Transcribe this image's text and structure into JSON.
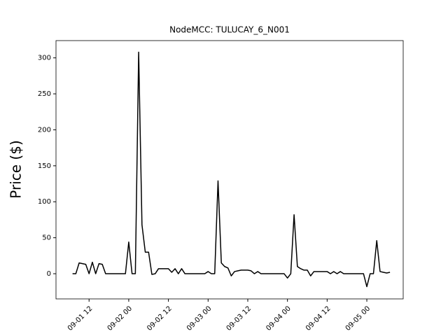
{
  "chart_data": {
    "type": "line",
    "title": "NodeMCC: TULUCAY_6_N001",
    "y_label": "Price ($)",
    "x": [
      "09-01 07",
      "09-01 08",
      "09-01 09",
      "09-01 10",
      "09-01 11",
      "09-01 12",
      "09-01 13",
      "09-01 14",
      "09-01 15",
      "09-01 16",
      "09-01 17",
      "09-01 18",
      "09-01 19",
      "09-01 20",
      "09-01 21",
      "09-01 22",
      "09-01 23",
      "09-02 00",
      "09-02 01",
      "09-02 02",
      "09-02 03",
      "09-02 04",
      "09-02 05",
      "09-02 06",
      "09-02 07",
      "09-02 08",
      "09-02 09",
      "09-02 10",
      "09-02 11",
      "09-02 12",
      "09-02 13",
      "09-02 14",
      "09-02 15",
      "09-02 16",
      "09-02 17",
      "09-02 18",
      "09-02 19",
      "09-02 20",
      "09-02 21",
      "09-02 22",
      "09-02 23",
      "09-03 00",
      "09-03 01",
      "09-03 02",
      "09-03 03",
      "09-03 04",
      "09-03 05",
      "09-03 06",
      "09-03 07",
      "09-03 08",
      "09-03 09",
      "09-03 10",
      "09-03 11",
      "09-03 12",
      "09-03 13",
      "09-03 14",
      "09-03 15",
      "09-03 16",
      "09-03 17",
      "09-03 18",
      "09-03 19",
      "09-03 20",
      "09-03 21",
      "09-03 22",
      "09-03 23",
      "09-04 00",
      "09-04 01",
      "09-04 02",
      "09-04 03",
      "09-04 04",
      "09-04 05",
      "09-04 06",
      "09-04 07",
      "09-04 08",
      "09-04 09",
      "09-04 10",
      "09-04 11",
      "09-04 12",
      "09-04 13",
      "09-04 14",
      "09-04 15",
      "09-04 16",
      "09-04 17",
      "09-04 18",
      "09-04 19",
      "09-04 20",
      "09-04 21",
      "09-04 22",
      "09-04 23",
      "09-05 00",
      "09-05 01",
      "09-05 02",
      "09-05 03",
      "09-05 04",
      "09-05 05",
      "09-05 06",
      "09-05 07"
    ],
    "series": [
      {
        "color": "#000000",
        "values": [
          0,
          0,
          15,
          14,
          13,
          0,
          16,
          0,
          14,
          13,
          0,
          0,
          0,
          0,
          0,
          0,
          0,
          44,
          0,
          0,
          308,
          68,
          30,
          30,
          -1,
          0,
          7,
          7,
          7,
          7,
          2,
          7,
          0,
          7,
          0,
          0,
          0,
          0,
          0,
          0,
          0,
          3,
          0,
          0,
          129,
          15,
          10,
          8,
          -3,
          3,
          4,
          5,
          5,
          5,
          4,
          0,
          3,
          0,
          0,
          0,
          0,
          0,
          0,
          0,
          0,
          -6,
          0,
          82,
          10,
          7,
          5,
          5,
          -3,
          3,
          3,
          3,
          3,
          3,
          0,
          3,
          0,
          3,
          0,
          0,
          0,
          0,
          0,
          0,
          0,
          -18,
          0,
          0,
          46,
          3,
          2,
          1,
          2
        ]
      }
    ],
    "xlim": [
      "09-01 02",
      "09-05 11"
    ],
    "xticks": [
      "09-01 12",
      "09-02 00",
      "09-02 12",
      "09-03 00",
      "09-03 12",
      "09-04 00",
      "09-04 12",
      "09-05 00"
    ],
    "ylim": [
      -35,
      324
    ],
    "yticks": [
      0,
      50,
      100,
      150,
      200,
      250,
      300
    ]
  }
}
